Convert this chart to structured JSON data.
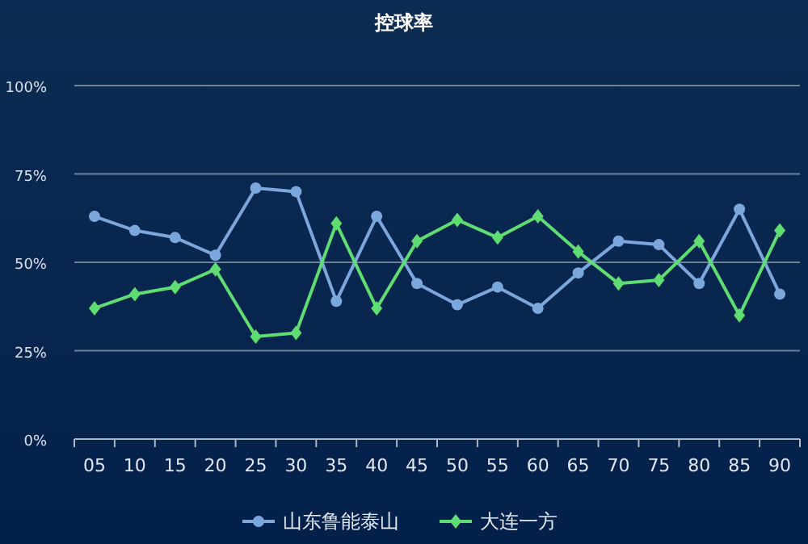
{
  "chart_data": {
    "type": "line",
    "title": "控球率",
    "categories": [
      "05",
      "10",
      "15",
      "20",
      "25",
      "30",
      "35",
      "40",
      "45",
      "50",
      "55",
      "60",
      "65",
      "70",
      "75",
      "80",
      "85",
      "90"
    ],
    "series": [
      {
        "name": "山东鲁能泰山",
        "color": "#7ba7dd",
        "marker": "circle",
        "values": [
          63,
          59,
          57,
          52,
          71,
          70,
          39,
          63,
          44,
          38,
          43,
          37,
          47,
          56,
          55,
          44,
          65,
          41
        ]
      },
      {
        "name": "大连一方",
        "color": "#5fdc72",
        "marker": "diamond",
        "values": [
          37,
          41,
          43,
          48,
          29,
          30,
          61,
          37,
          56,
          62,
          57,
          63,
          53,
          44,
          45,
          56,
          35,
          59
        ]
      }
    ],
    "ylim": [
      0,
      100
    ],
    "yticks": [
      {
        "value": 0,
        "label": "0%"
      },
      {
        "value": 25,
        "label": "25%"
      },
      {
        "value": 50,
        "label": "50%"
      },
      {
        "value": 75,
        "label": "75%"
      },
      {
        "value": 100,
        "label": "100%"
      }
    ],
    "grid": "y",
    "legend": "bottom",
    "line_style": "solid"
  }
}
